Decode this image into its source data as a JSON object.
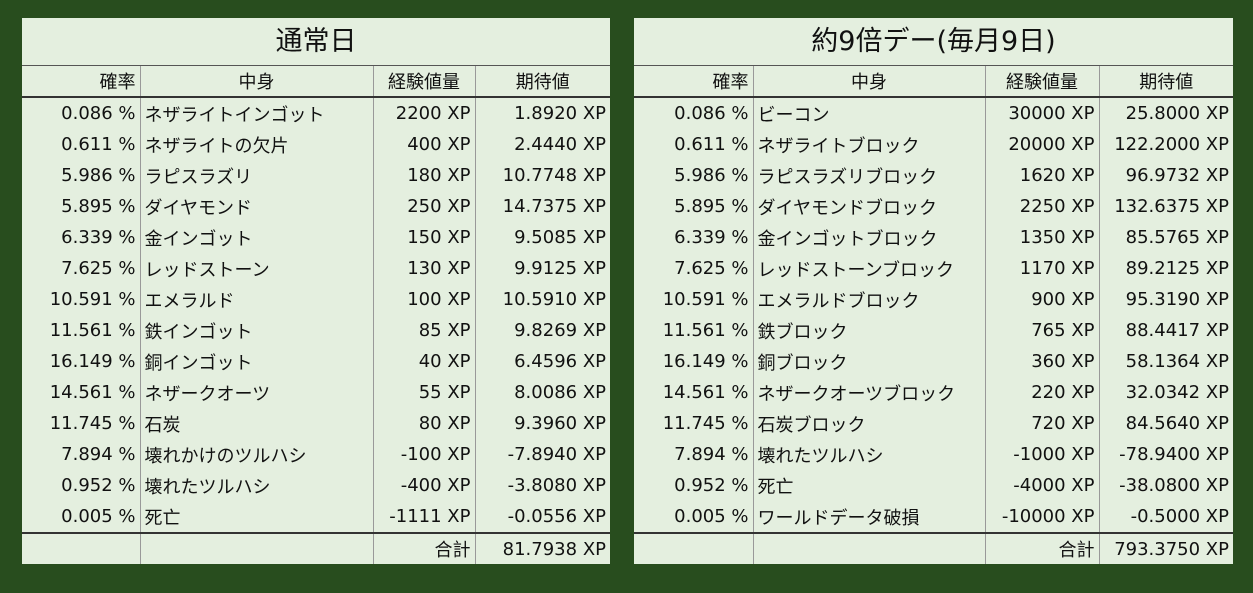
{
  "headers": [
    "確率",
    "中身",
    "経験値量",
    "期待値"
  ],
  "total_label": "合計",
  "normal": {
    "title": "通常日",
    "rows": [
      {
        "rate": "0.086 %",
        "item": "ネザライトインゴット",
        "xp": "2200 XP",
        "ev": "1.8920 XP"
      },
      {
        "rate": "0.611 %",
        "item": "ネザライトの欠片",
        "xp": "400 XP",
        "ev": "2.4440 XP"
      },
      {
        "rate": "5.986 %",
        "item": "ラピスラズリ",
        "xp": "180 XP",
        "ev": "10.7748 XP"
      },
      {
        "rate": "5.895 %",
        "item": "ダイヤモンド",
        "xp": "250 XP",
        "ev": "14.7375 XP"
      },
      {
        "rate": "6.339 %",
        "item": "金インゴット",
        "xp": "150 XP",
        "ev": "9.5085 XP"
      },
      {
        "rate": "7.625 %",
        "item": "レッドストーン",
        "xp": "130 XP",
        "ev": "9.9125 XP"
      },
      {
        "rate": "10.591 %",
        "item": "エメラルド",
        "xp": "100 XP",
        "ev": "10.5910 XP"
      },
      {
        "rate": "11.561 %",
        "item": "鉄インゴット",
        "xp": "85 XP",
        "ev": "9.8269 XP"
      },
      {
        "rate": "16.149 %",
        "item": "銅インゴット",
        "xp": "40 XP",
        "ev": "6.4596 XP"
      },
      {
        "rate": "14.561 %",
        "item": "ネザークオーツ",
        "xp": "55 XP",
        "ev": "8.0086 XP"
      },
      {
        "rate": "11.745 %",
        "item": "石炭",
        "xp": "80 XP",
        "ev": "9.3960 XP"
      },
      {
        "rate": "7.894 %",
        "item": "壊れかけのツルハシ",
        "xp": "-100 XP",
        "ev": "-7.8940 XP"
      },
      {
        "rate": "0.952 %",
        "item": "壊れたツルハシ",
        "xp": "-400 XP",
        "ev": "-3.8080 XP"
      },
      {
        "rate": "0.005 %",
        "item": "死亡",
        "xp": "-1111 XP",
        "ev": "-0.0556 XP"
      }
    ],
    "total": "81.7938 XP"
  },
  "ninth": {
    "title": "約9倍デー(毎月9日)",
    "rows": [
      {
        "rate": "0.086 %",
        "item": "ビーコン",
        "xp": "30000 XP",
        "ev": "25.8000 XP"
      },
      {
        "rate": "0.611 %",
        "item": "ネザライトブロック",
        "xp": "20000 XP",
        "ev": "122.2000 XP"
      },
      {
        "rate": "5.986 %",
        "item": "ラピスラズリブロック",
        "xp": "1620 XP",
        "ev": "96.9732 XP"
      },
      {
        "rate": "5.895 %",
        "item": "ダイヤモンドブロック",
        "xp": "2250 XP",
        "ev": "132.6375 XP"
      },
      {
        "rate": "6.339 %",
        "item": "金インゴットブロック",
        "xp": "1350 XP",
        "ev": "85.5765 XP"
      },
      {
        "rate": "7.625 %",
        "item": "レッドストーンブロック",
        "xp": "1170 XP",
        "ev": "89.2125 XP"
      },
      {
        "rate": "10.591 %",
        "item": "エメラルドブロック",
        "xp": "900 XP",
        "ev": "95.3190 XP"
      },
      {
        "rate": "11.561 %",
        "item": "鉄ブロック",
        "xp": "765 XP",
        "ev": "88.4417 XP"
      },
      {
        "rate": "16.149 %",
        "item": "銅ブロック",
        "xp": "360 XP",
        "ev": "58.1364 XP"
      },
      {
        "rate": "14.561 %",
        "item": "ネザークオーツブロック",
        "xp": "220 XP",
        "ev": "32.0342 XP"
      },
      {
        "rate": "11.745 %",
        "item": "石炭ブロック",
        "xp": "720 XP",
        "ev": "84.5640 XP"
      },
      {
        "rate": "7.894 %",
        "item": "壊れたツルハシ",
        "xp": "-1000 XP",
        "ev": "-78.9400 XP"
      },
      {
        "rate": "0.952 %",
        "item": "死亡",
        "xp": "-4000 XP",
        "ev": "-38.0800 XP"
      },
      {
        "rate": "0.005 %",
        "item": "ワールドデータ破損",
        "xp": "-10000 XP",
        "ev": "-0.5000 XP"
      }
    ],
    "total": "793.3750 XP"
  }
}
